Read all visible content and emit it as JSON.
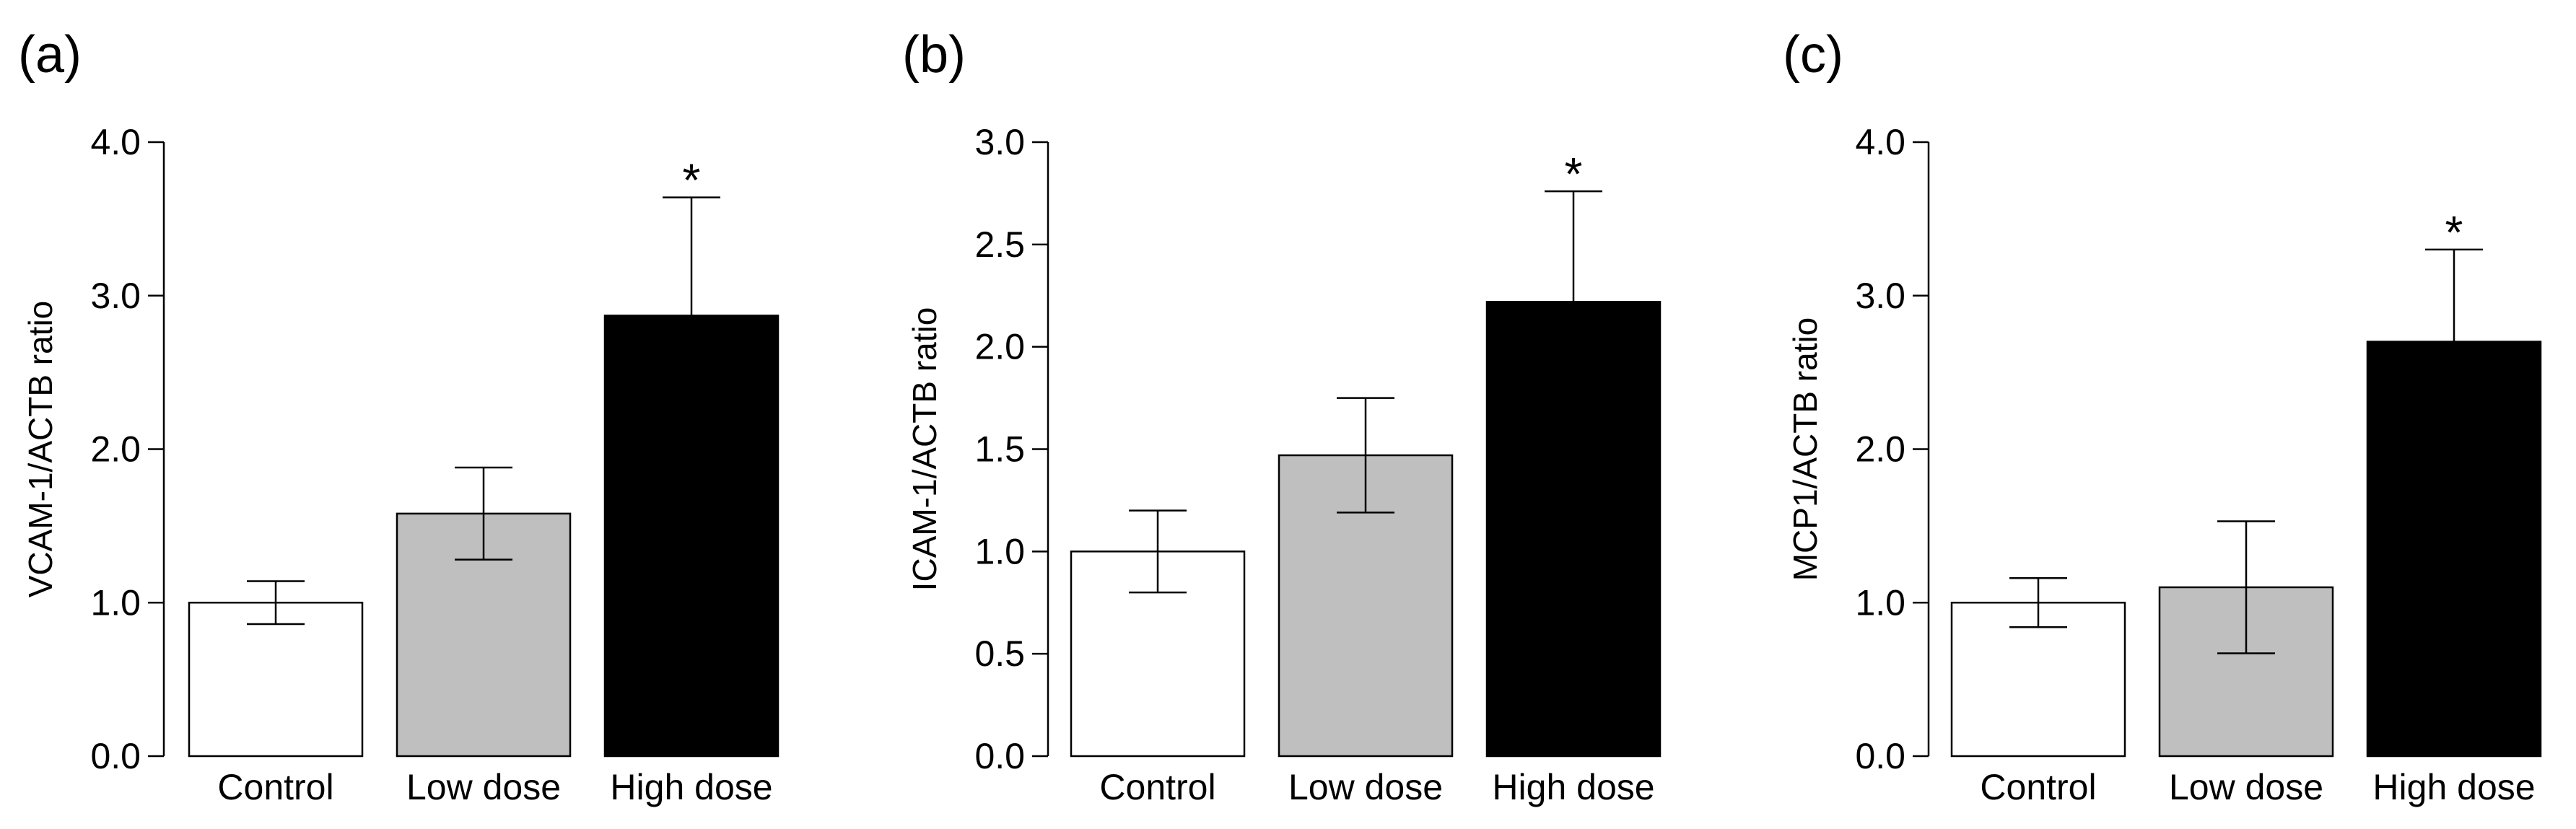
{
  "chart_data": [
    {
      "type": "bar",
      "panel_label": "(a)",
      "categories": [
        "Control",
        "Low dose",
        "High dose"
      ],
      "values": [
        1.0,
        1.58,
        2.87
      ],
      "error": [
        0.14,
        0.3,
        0.77
      ],
      "significance": [
        "",
        "",
        "*"
      ],
      "bar_colors": [
        "#ffffff",
        "#bfbfbf",
        "#000000"
      ],
      "ylabel": "VCAM-1/ACTB ratio",
      "ylim": [
        0,
        4
      ],
      "yticks": [
        0,
        1,
        2,
        3,
        4
      ],
      "ytick_labels": [
        "0.0",
        "1.0",
        "2.0",
        "3.0",
        "4.0"
      ]
    },
    {
      "type": "bar",
      "panel_label": "(b)",
      "categories": [
        "Control",
        "Low dose",
        "High dose"
      ],
      "values": [
        1.0,
        1.47,
        2.22
      ],
      "error": [
        0.2,
        0.28,
        0.54
      ],
      "significance": [
        "",
        "",
        "*"
      ],
      "bar_colors": [
        "#ffffff",
        "#bfbfbf",
        "#000000"
      ],
      "ylabel": "ICAM-1/ACTB ratio",
      "ylim": [
        0,
        3
      ],
      "yticks": [
        0,
        0.5,
        1,
        1.5,
        2,
        2.5,
        3
      ],
      "ytick_labels": [
        "0.0",
        "0.5",
        "1.0",
        "1.5",
        "2.0",
        "2.5",
        "3.0"
      ]
    },
    {
      "type": "bar",
      "panel_label": "(c)",
      "categories": [
        "Control",
        "Low dose",
        "High dose"
      ],
      "values": [
        1.0,
        1.1,
        2.7
      ],
      "error": [
        0.16,
        0.43,
        0.6
      ],
      "significance": [
        "",
        "",
        "*"
      ],
      "bar_colors": [
        "#ffffff",
        "#bfbfbf",
        "#000000"
      ],
      "ylabel": "MCP1/ACTB ratio",
      "ylim": [
        0,
        4
      ],
      "yticks": [
        0,
        1,
        2,
        3,
        4
      ],
      "ytick_labels": [
        "0.0",
        "1.0",
        "2.0",
        "3.0",
        "4.0"
      ]
    }
  ]
}
